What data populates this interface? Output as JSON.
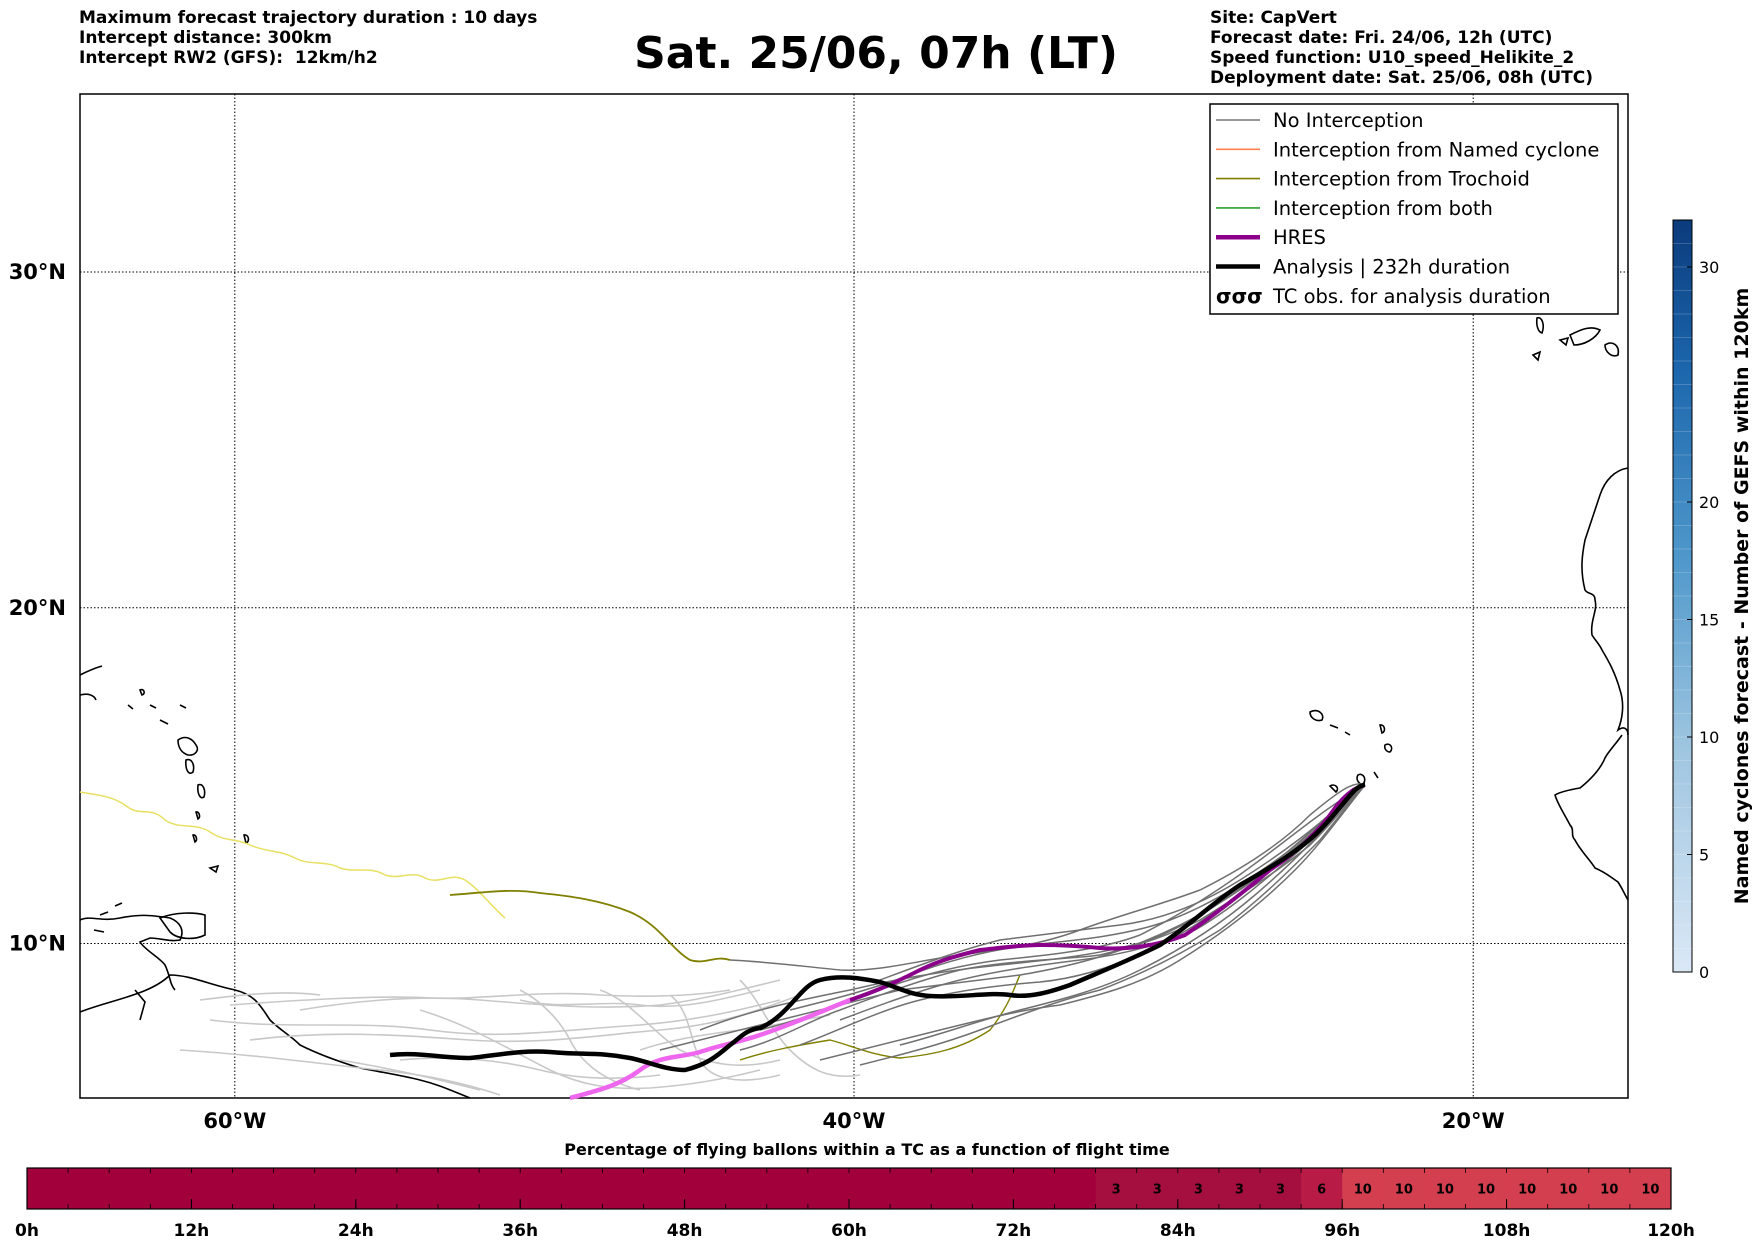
{
  "header": {
    "left_lines": [
      "Maximum forecast trajectory duration : 10 days",
      "Intercept distance: 300km",
      "Intercept RW2 (GFS):  12km/h2"
    ],
    "title": "Sat. 25/06, 07h (LT)",
    "right_lines": [
      "Site: CapVert",
      "Forecast date: Fri. 24/06, 12h (UTC)",
      "Speed function: U10_speed_Helikite_2",
      "Deployment date: Sat. 25/06, 08h (UTC)"
    ]
  },
  "map": {
    "lat_labels": [
      "30°N",
      "20°N",
      "10°N"
    ],
    "lon_labels": [
      "60°W",
      "40°W",
      "20°W"
    ],
    "lat_values": [
      30,
      20,
      10
    ],
    "lon_values": [
      -60,
      -40,
      -20
    ],
    "extent": {
      "lon_min": -65,
      "lon_max": -15,
      "lat_min": 5.4,
      "lat_max": 35.3
    }
  },
  "legend": {
    "items": [
      {
        "label": "No Interception",
        "color": "#777777",
        "style": "thin"
      },
      {
        "label": "Interception from Named cyclone",
        "color": "#ff7f50",
        "style": "thin"
      },
      {
        "label": "Interception from Trochoid",
        "color": "#808000",
        "style": "thin"
      },
      {
        "label": "Interception from both",
        "color": "#2ca02c",
        "style": "thin"
      },
      {
        "label": "HRES",
        "color": "#8b008b",
        "style": "thick"
      },
      {
        "label": "Analysis | 232h duration",
        "color": "#000000",
        "style": "thick"
      },
      {
        "label": "TC obs. for analysis duration",
        "color": "#000000",
        "style": "symbol",
        "symbol": "σσσ"
      }
    ]
  },
  "colorbar": {
    "label": "Named cyclones forecast - Number of GEFS within 120km",
    "ticks": [
      "0",
      "5",
      "10",
      "15",
      "20",
      "30"
    ],
    "tick_values": [
      0,
      5,
      10,
      15,
      20,
      30
    ],
    "max": 32
  },
  "timebar": {
    "title": "Percentage of flying ballons within a TC as a function of flight time",
    "tick_labels": [
      "0h",
      "12h",
      "24h",
      "36h",
      "48h",
      "60h",
      "72h",
      "84h",
      "96h",
      "108h",
      "120h"
    ],
    "cells": [
      "",
      "",
      "",
      "",
      "",
      "",
      "",
      "",
      "",
      "",
      "",
      "",
      "",
      "",
      "",
      "",
      "",
      "",
      "",
      "",
      "",
      "",
      "",
      "",
      "",
      "",
      "3",
      "3",
      "3",
      "3",
      "3",
      "6",
      "10",
      "10",
      "10",
      "10",
      "10",
      "10",
      "10",
      "10"
    ],
    "colors": {
      "zero": "#a1003b",
      "low": "#a50f40",
      "mid": "#b81c46",
      "high": "#d43f50"
    }
  },
  "chart_data": {
    "type": "bar",
    "title": "Percentage of flying ballons within a TC as a function of flight time",
    "categories_hours": [
      78,
      81,
      84,
      87,
      90,
      93,
      96,
      99,
      102,
      105,
      108,
      111,
      114,
      117
    ],
    "values": [
      3,
      3,
      3,
      3,
      3,
      6,
      10,
      10,
      10,
      10,
      10,
      10,
      10,
      10
    ],
    "xlim": [
      0,
      120
    ]
  }
}
